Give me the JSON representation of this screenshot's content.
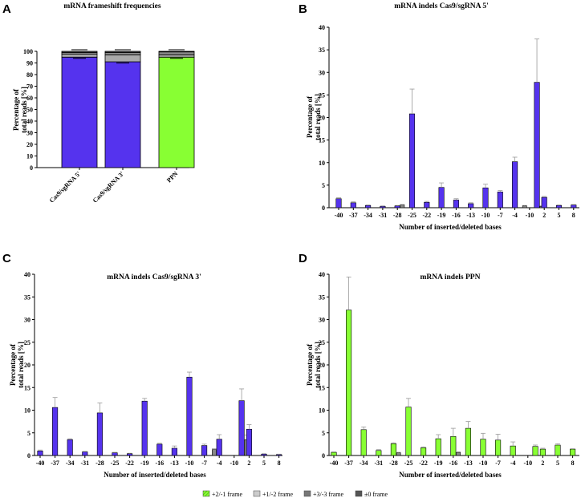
{
  "colors": {
    "cas9": "#5533ee",
    "ppn": "#88ff33",
    "plus2": "#aaaaaa",
    "plus3": "#777777",
    "plus0": "#555555",
    "error": "#999999",
    "axis": "#000000"
  },
  "legend": [
    {
      "label": "+2/-1 frame",
      "color": "#88ff33",
      "pattern": "hatch"
    },
    {
      "label": "+1/-2 frame",
      "color": "#cccccc",
      "pattern": "solid"
    },
    {
      "label": "+3/-3 frame",
      "color": "#777777",
      "pattern": "solid"
    },
    {
      "label": "±0 frame",
      "color": "#555555",
      "pattern": "solid"
    }
  ],
  "chart_data": [
    {
      "panel": "A",
      "type": "bar",
      "stacked": true,
      "title": "mRNA frameshift frequencies",
      "ylabel": "Percentage of total reads [%]",
      "xlabel": "",
      "ylim": [
        0,
        100
      ],
      "yticks": [
        0,
        10,
        20,
        30,
        40,
        50,
        60,
        70,
        80,
        90,
        100
      ],
      "categories": [
        "Cas9/sgRNA 5'",
        "Cas9/sgRNA 3'",
        "PPN"
      ],
      "series": [
        {
          "values": [
            95,
            91,
            95
          ],
          "colors": [
            "#5533ee",
            "#5533ee",
            "#88ff33"
          ]
        },
        {
          "values": [
            2.5,
            6,
            2
          ],
          "colors": [
            "#aaaaaa",
            "#aaaaaa",
            "#aaaaaa"
          ]
        },
        {
          "values": [
            1.5,
            2,
            2.5
          ],
          "colors": [
            "#888888",
            "#888888",
            "#888888"
          ]
        },
        {
          "values": [
            1,
            1,
            0.5
          ],
          "colors": [
            "#555555",
            "#555555",
            "#555555"
          ]
        }
      ]
    },
    {
      "panel": "B",
      "type": "bar",
      "title": "mRNA indels Cas9/sgRNA 5'",
      "ylabel": "Percentage of total reads [%]",
      "xlabel": "Number of inserted/deleted bases",
      "ylim": [
        0,
        40
      ],
      "yticks": [
        0,
        5,
        10,
        15,
        20,
        25,
        30,
        35,
        40
      ],
      "xticks": [
        "-40",
        "-37",
        "-34",
        "-31",
        "-28",
        "-25",
        "-22",
        "-19",
        "-16",
        "-13",
        "-10",
        "-7",
        "-4",
        "-10",
        "2",
        "5",
        "8"
      ],
      "primary_color": "#5533ee",
      "bars": [
        {
          "x": -40,
          "v": 2.0,
          "e": 0.2
        },
        {
          "x": -37,
          "v": 1.1,
          "e": 0.2
        },
        {
          "x": -34,
          "v": 0.5,
          "e": 0.1
        },
        {
          "x": -31,
          "v": 0.3,
          "e": 0.1
        },
        {
          "x": -28,
          "v": 0.4,
          "e": 0.1
        },
        {
          "x": -27,
          "v": 0.6,
          "e": 0.1,
          "gray": true
        },
        {
          "x": -25,
          "v": 20.8,
          "e": 5.5
        },
        {
          "x": -22,
          "v": 1.2,
          "e": 0.2
        },
        {
          "x": -19,
          "v": 4.5,
          "e": 1.0
        },
        {
          "x": -16,
          "v": 1.7,
          "e": 0.3
        },
        {
          "x": -13,
          "v": 0.9,
          "e": 0.2
        },
        {
          "x": -10,
          "v": 4.4,
          "e": 0.8
        },
        {
          "x": -7,
          "v": 3.5,
          "e": 0.3
        },
        {
          "x": -4,
          "v": 10.2,
          "e": 1.0
        },
        {
          "x": -3,
          "v": 0.4,
          "e": 0.1,
          "gray": true
        },
        {
          "x": -10,
          "v": 27.8,
          "e": 9.6,
          "slot": 13.5
        },
        {
          "x": 1,
          "v": 0.3,
          "e": 0.1,
          "gray": true
        },
        {
          "x": 2,
          "v": 2.3,
          "e": 0.2
        },
        {
          "x": 5,
          "v": 0.5,
          "e": 0.1
        },
        {
          "x": 8,
          "v": 0.6,
          "e": 0.1
        }
      ]
    },
    {
      "panel": "C",
      "type": "bar",
      "title": "mRNA indels Cas9/sgRNA 3'",
      "ylabel": "Percentage of total reads [%]",
      "xlabel": "Number of inserted/deleted bases",
      "ylim": [
        0,
        40
      ],
      "yticks": [
        0,
        5,
        10,
        15,
        20,
        25,
        30,
        35,
        40
      ],
      "xticks": [
        "-40",
        "-37",
        "-34",
        "-31",
        "-28",
        "-25",
        "-22",
        "-19",
        "-16",
        "-13",
        "-10",
        "-7",
        "-4",
        "-10",
        "2",
        "5",
        "8"
      ],
      "primary_color": "#5533ee",
      "bars": [
        {
          "x": -40,
          "v": 1.0,
          "e": 0.2
        },
        {
          "x": -37,
          "v": 10.6,
          "e": 2.2
        },
        {
          "x": -34,
          "v": 3.5,
          "e": 0.2
        },
        {
          "x": -31,
          "v": 0.8,
          "e": 0.1
        },
        {
          "x": -28,
          "v": 9.4,
          "e": 2.2
        },
        {
          "x": -25,
          "v": 0.6,
          "e": 0.1
        },
        {
          "x": -22,
          "v": 0.4,
          "e": 0.1
        },
        {
          "x": -19,
          "v": 12.0,
          "e": 0.6
        },
        {
          "x": -16,
          "v": 2.5,
          "e": 0.2
        },
        {
          "x": -13,
          "v": 1.6,
          "e": 0.5
        },
        {
          "x": -10,
          "v": 17.3,
          "e": 1.1
        },
        {
          "x": -7,
          "v": 2.2,
          "e": 0.3
        },
        {
          "x": -5,
          "v": 1.3,
          "e": 0.2,
          "gray": true
        },
        {
          "x": -4,
          "v": 3.6,
          "e": 1.0
        },
        {
          "x": -10,
          "v": 12.1,
          "e": 2.6,
          "slot": 13.5
        },
        {
          "x": 1,
          "v": 3.5,
          "e": 1.0,
          "gray": true
        },
        {
          "x": 2,
          "v": 5.8,
          "e": 1.0
        },
        {
          "x": 5,
          "v": 0.3,
          "e": 0.1
        },
        {
          "x": 8,
          "v": 0.2,
          "e": 0.1
        }
      ]
    },
    {
      "panel": "D",
      "type": "bar",
      "title": "mRNA indels PPN",
      "ylabel": "Percentage of total reads [%]",
      "xlabel": "Number of inserted/deleted bases",
      "ylim": [
        0,
        40
      ],
      "yticks": [
        0,
        5,
        10,
        15,
        20,
        25,
        30,
        35,
        40
      ],
      "xticks": [
        "-40",
        "-37",
        "-34",
        "-31",
        "-28",
        "-25",
        "-22",
        "-19",
        "-16",
        "-13",
        "-10",
        "-7",
        "-4",
        "-10",
        "2",
        "5",
        "8"
      ],
      "primary_color": "#88ff33",
      "bars": [
        {
          "x": -40,
          "v": 0.7,
          "e": 0.1
        },
        {
          "x": -37,
          "v": 32.1,
          "e": 7.3
        },
        {
          "x": -34,
          "v": 5.7,
          "e": 0.6
        },
        {
          "x": -31,
          "v": 1.1,
          "e": 0.2
        },
        {
          "x": -28,
          "v": 2.6,
          "e": 0.2
        },
        {
          "x": -27,
          "v": 0.6,
          "e": 0.1,
          "gray": true
        },
        {
          "x": -25,
          "v": 10.7,
          "e": 1.9
        },
        {
          "x": -22,
          "v": 1.7,
          "e": 0.2
        },
        {
          "x": -19,
          "v": 3.7,
          "e": 0.9
        },
        {
          "x": -16,
          "v": 4.2,
          "e": 1.8
        },
        {
          "x": -15,
          "v": 0.7,
          "e": 0.1,
          "gray": true
        },
        {
          "x": -13,
          "v": 6.0,
          "e": 1.5
        },
        {
          "x": -10,
          "v": 3.6,
          "e": 1.3
        },
        {
          "x": -7,
          "v": 3.4,
          "e": 1.3
        },
        {
          "x": -4,
          "v": 2.1,
          "e": 0.9
        },
        {
          "x": -10,
          "v": 2.0,
          "e": 0.3,
          "slot": 13.5
        },
        {
          "x": 2,
          "v": 1.4,
          "e": 0.2
        },
        {
          "x": 5,
          "v": 2.3,
          "e": 0.3
        },
        {
          "x": 8,
          "v": 1.4,
          "e": 0.1
        }
      ]
    }
  ]
}
